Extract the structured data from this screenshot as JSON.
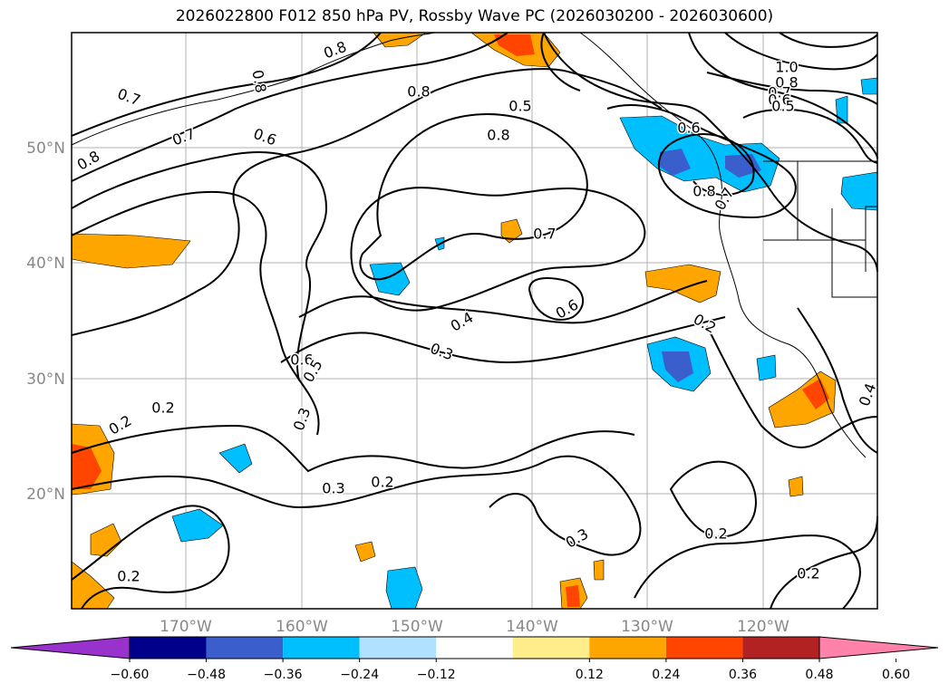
{
  "title": "2026022800 F012 850 hPa PV, Rossby Wave PC (2026030200 - 2026030600)",
  "map": {
    "lat_labels": [
      "50°N",
      "40°N",
      "30°N",
      "20°N"
    ],
    "lon_labels": [
      "170°W",
      "160°W",
      "150°W",
      "140°W",
      "130°W",
      "120°W"
    ],
    "contour_labels": [
      "0.8",
      "0.8",
      "0.7",
      "0.7",
      "0.6",
      "0.8",
      "0.8",
      "0.5",
      "0.8",
      "0.7",
      "1.0",
      "0.8",
      "0.7",
      "0.6",
      "0.5",
      "0.6",
      "0.8",
      "0.7",
      "0.6",
      "0.4",
      "0.3",
      "0.6",
      "0.5",
      "0.2",
      "0.2",
      "0.2",
      "0.3",
      "0.2",
      "0.3",
      "0.2",
      "0.3",
      "0.2",
      "0.4",
      "0.2"
    ]
  },
  "colorbar": {
    "ticks": [
      "−0.60",
      "−0.48",
      "−0.36",
      "−0.24",
      "−0.12",
      "0.12",
      "0.24",
      "0.36",
      "0.48",
      "0.60"
    ],
    "colors": [
      "#9932cc",
      "#00008b",
      "#3a5fcd",
      "#00bfff",
      "#b0e2ff",
      "#ffffff",
      "#ffec8b",
      "#ffa500",
      "#ff4500",
      "#b22222",
      "#ff82ab"
    ]
  }
}
